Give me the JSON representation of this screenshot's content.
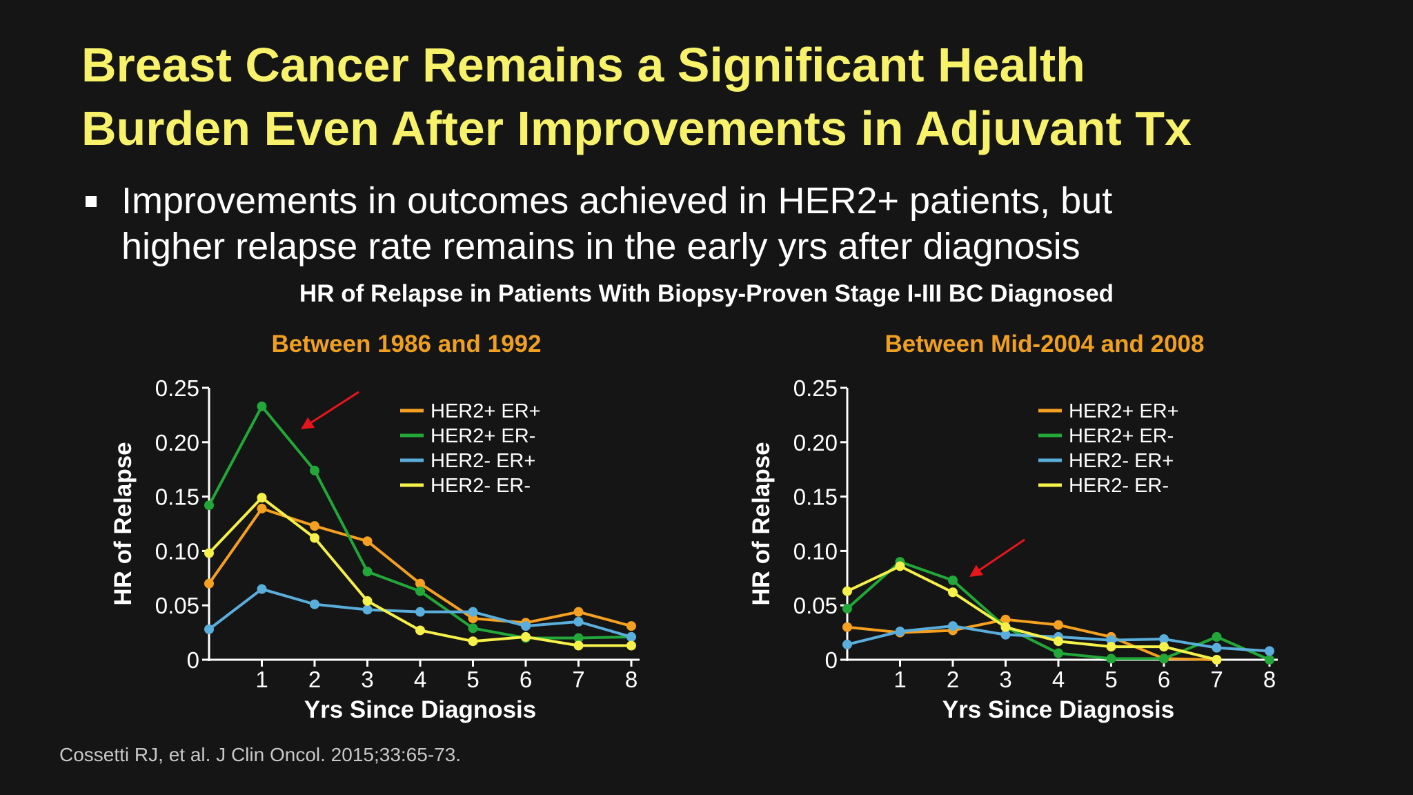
{
  "slide": {
    "title_lines": [
      "Breast Cancer Remains a Significant Health",
      "Burden Even After Improvements in Adjuvant Tx"
    ],
    "bullet_lines": [
      "Improvements in outcomes achieved in HER2+ patients, but",
      "higher relapse rate remains in the early yrs after diagnosis"
    ],
    "chart_main_title": "HR of Relapse in Patients With Biopsy-Proven Stage I-III BC Diagnosed",
    "footnote": "Cossetti RJ, et al. J Clin Oncol. 2015;33:65-73."
  },
  "colors": {
    "background": "#151515",
    "title": "#f7f26a",
    "subtitle": "#f0a020",
    "HER2+ ER+": "#f5a020",
    "HER2+ ER-": "#22a838",
    "HER2- ER+": "#5aaedc",
    "HER2- ER-": "#f5f04a",
    "arrow": "#e8161b"
  },
  "chart_data": [
    {
      "type": "line",
      "title": "Between 1986 and 1992",
      "xlabel": "Yrs Since Diagnosis",
      "ylabel": "HR of Relapse",
      "xlim": [
        0,
        8
      ],
      "ylim": [
        0,
        0.25
      ],
      "x_ticks": [
        "1",
        "2",
        "3",
        "4",
        "5",
        "6",
        "7",
        "8"
      ],
      "y_ticks": [
        "0",
        "0.05",
        "0.10",
        "0.15",
        "0.20",
        "0.25"
      ],
      "legend_position": "top-right",
      "grid": false,
      "annotation": "red arrow pointing to HER2+ ER- peak",
      "x": [
        0,
        1,
        2,
        3,
        4,
        5,
        6,
        7,
        8
      ],
      "series": [
        {
          "name": "HER2+ ER+",
          "values": [
            0.07,
            0.139,
            0.123,
            0.109,
            0.07,
            0.038,
            0.034,
            0.044,
            0.031
          ]
        },
        {
          "name": "HER2+ ER-",
          "values": [
            0.142,
            0.233,
            0.174,
            0.081,
            0.063,
            0.029,
            0.02,
            0.02,
            0.021
          ]
        },
        {
          "name": "HER2- ER+",
          "values": [
            0.028,
            0.065,
            0.051,
            0.046,
            0.044,
            0.044,
            0.031,
            0.035,
            0.021
          ]
        },
        {
          "name": "HER2- ER-",
          "values": [
            0.098,
            0.149,
            0.112,
            0.054,
            0.027,
            0.017,
            0.021,
            0.013,
            0.013
          ]
        }
      ]
    },
    {
      "type": "line",
      "title": "Between Mid-2004 and 2008",
      "xlabel": "Yrs Since Diagnosis",
      "ylabel": "HR of Relapse",
      "xlim": [
        0,
        8
      ],
      "ylim": [
        0,
        0.25
      ],
      "x_ticks": [
        "1",
        "2",
        "3",
        "4",
        "5",
        "6",
        "7",
        "8"
      ],
      "y_ticks": [
        "0",
        "0.05",
        "0.10",
        "0.15",
        "0.20",
        "0.25"
      ],
      "legend_position": "top-right",
      "grid": false,
      "annotation": "red arrow pointing to HER2+ ER- values",
      "x": [
        0,
        1,
        2,
        3,
        4,
        5,
        6,
        7,
        8
      ],
      "series": [
        {
          "name": "HER2+ ER+",
          "values": [
            0.03,
            0.025,
            0.027,
            0.037,
            0.032,
            0.021,
            0.001,
            0.0,
            null
          ]
        },
        {
          "name": "HER2+ ER-",
          "values": [
            0.047,
            0.09,
            0.073,
            0.03,
            0.006,
            0.001,
            0.001,
            0.021,
            0.0
          ]
        },
        {
          "name": "HER2- ER+",
          "values": [
            0.014,
            0.026,
            0.031,
            0.023,
            0.021,
            0.018,
            0.019,
            0.011,
            0.008
          ]
        },
        {
          "name": "HER2- ER-",
          "values": [
            0.063,
            0.086,
            0.062,
            0.03,
            0.017,
            0.012,
            0.012,
            0.0,
            null
          ]
        }
      ]
    }
  ]
}
